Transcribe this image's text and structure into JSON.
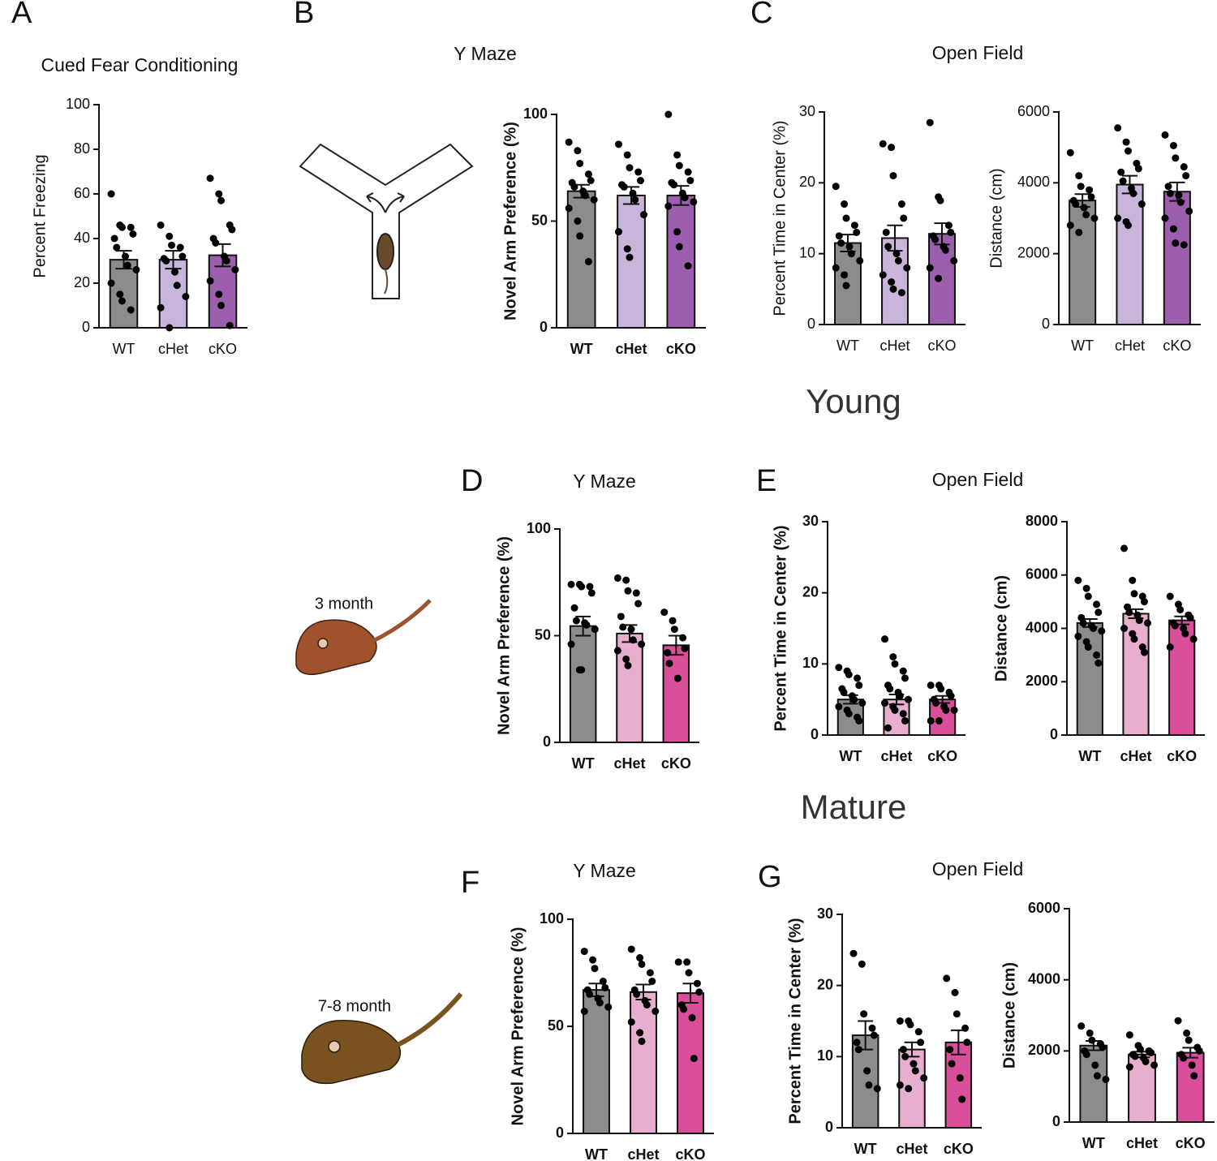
{
  "labels": {
    "young": "Young",
    "mature": "Mature",
    "age_3": "3 month",
    "age_7": "7-8 month"
  },
  "chart_data": [
    {
      "type": "bar",
      "panel": "A",
      "title": "Cued Fear Conditioning",
      "ylabel": "Percent Freezing",
      "font_weight": "normal",
      "categories": [
        "WT",
        "cHet",
        "cKO"
      ],
      "colors": [
        "#8c8c8a",
        "#c9b5d9",
        "#9b5fae"
      ],
      "values": [
        30.5,
        30.5,
        32.5
      ],
      "errors": [
        4,
        4,
        5
      ],
      "points": [
        [
          60,
          46,
          45,
          45,
          42,
          40,
          36,
          32,
          28,
          26,
          20,
          15,
          12,
          8
        ],
        [
          46,
          41,
          37,
          36,
          32,
          31,
          30,
          25,
          19,
          14,
          9,
          0
        ],
        [
          67,
          60,
          57,
          46,
          44,
          40,
          38,
          32,
          30,
          26,
          21,
          15,
          10,
          1
        ]
      ],
      "ylim": [
        0,
        100
      ],
      "yticks": [
        0,
        20,
        40,
        60,
        80,
        100
      ]
    },
    {
      "type": "bar",
      "panel": "B",
      "title": "Y Maze",
      "ylabel": "Novel Arm Preference (%)",
      "font_weight": "bold",
      "categories": [
        "WT",
        "cHet",
        "cKO"
      ],
      "colors": [
        "#8c8c8a",
        "#c9b5d9",
        "#9b5fae"
      ],
      "values": [
        64,
        62,
        62
      ],
      "errors": [
        3,
        4,
        4.5
      ],
      "points": [
        [
          87,
          83,
          77,
          72,
          69,
          68,
          66,
          64,
          62,
          60,
          56,
          50,
          43,
          31
        ],
        [
          86,
          81,
          75,
          73,
          69,
          67,
          66,
          63,
          60,
          53,
          45,
          37,
          33
        ],
        [
          100,
          81,
          76,
          73,
          69,
          68,
          67,
          63,
          61,
          59,
          57,
          45,
          38,
          29
        ]
      ],
      "ylim": [
        0,
        100
      ],
      "yticks": [
        0,
        50,
        100
      ]
    },
    {
      "type": "bar",
      "panel": "C",
      "title": "Open Field",
      "ylabel": "Percent Time in Center (%)",
      "font_weight": "normal",
      "categories": [
        "WT",
        "cHet",
        "cKO"
      ],
      "colors": [
        "#8c8c8a",
        "#c9b5d9",
        "#9b5fae"
      ],
      "values": [
        11.5,
        12.2,
        12.8
      ],
      "errors": [
        1.2,
        1.8,
        1.5
      ],
      "points": [
        [
          19.5,
          17,
          15,
          14,
          13,
          12.5,
          11.5,
          11,
          10,
          9,
          8,
          7,
          5.5
        ],
        [
          25.5,
          25,
          21,
          17,
          15,
          13,
          11,
          10,
          9,
          8,
          7,
          6,
          5,
          4.5
        ],
        [
          28.5,
          18,
          17.5,
          14,
          13,
          12.5,
          12,
          11,
          10.5,
          9,
          8,
          6.5
        ]
      ],
      "ylim": [
        0,
        30
      ],
      "yticks": [
        0,
        10,
        20,
        30
      ]
    },
    {
      "type": "bar",
      "ylabel": "Distance (cm)",
      "font_weight": "normal",
      "categories": [
        "WT",
        "cHet",
        "cKO"
      ],
      "colors": [
        "#8c8c8a",
        "#c9b5d9",
        "#9b5fae"
      ],
      "values": [
        3500,
        3950,
        3750
      ],
      "errors": [
        180,
        250,
        260
      ],
      "points": [
        [
          4850,
          4200,
          3900,
          3800,
          3600,
          3500,
          3400,
          3300,
          3100,
          3000,
          2800,
          2600
        ],
        [
          5550,
          5150,
          4900,
          4550,
          4400,
          4300,
          4050,
          3850,
          3700,
          3400,
          3000,
          2900,
          2800
        ],
        [
          5350,
          5050,
          4700,
          4450,
          4200,
          3900,
          3700,
          3650,
          3450,
          3200,
          3000,
          2700,
          2300,
          2250
        ]
      ],
      "ylim": [
        0,
        6000
      ],
      "yticks": [
        0,
        2000,
        4000,
        6000
      ]
    },
    {
      "type": "bar",
      "panel": "D",
      "title": "Y Maze",
      "ylabel": "Novel Arm Preference (%)",
      "font_weight": "bold",
      "categories": [
        "WT",
        "cHet",
        "cKO"
      ],
      "colors": [
        "#8c8c8a",
        "#e8aed0",
        "#d94f9a"
      ],
      "values": [
        54.5,
        51,
        45.5
      ],
      "errors": [
        4.5,
        4,
        4.5
      ],
      "points": [
        [
          74,
          74,
          73,
          73,
          70,
          63,
          57,
          56,
          55,
          53,
          46,
          34,
          34
        ],
        [
          77,
          76,
          71,
          70,
          65,
          59,
          54,
          53,
          48,
          46,
          43,
          39,
          36
        ],
        [
          61,
          57,
          53,
          49,
          44,
          42,
          37,
          30
        ]
      ],
      "ylim": [
        0,
        100
      ],
      "yticks": [
        0,
        50,
        100
      ]
    },
    {
      "type": "bar",
      "panel": "E",
      "title": "Open Field",
      "ylabel": "Percent Time in Center (%)",
      "font_weight": "bold",
      "categories": [
        "WT",
        "cHet",
        "cKO"
      ],
      "colors": [
        "#8c8c8a",
        "#e8aed0",
        "#d94f9a"
      ],
      "values": [
        5,
        5,
        5
      ],
      "errors": [
        0.6,
        0.7,
        0.5
      ],
      "points": [
        [
          9.5,
          9,
          8.5,
          8,
          7,
          6.5,
          6,
          5.5,
          5,
          4.5,
          4,
          3.5,
          3,
          2.5,
          2
        ],
        [
          13.5,
          11,
          10,
          9,
          8,
          7,
          6.5,
          6,
          5.5,
          5,
          4.5,
          4,
          3.5,
          3,
          2,
          1
        ],
        [
          7,
          7,
          6.5,
          6,
          5.5,
          5,
          4.5,
          4,
          3.5,
          3.5,
          2,
          2
        ]
      ],
      "ylim": [
        0,
        30
      ],
      "yticks": [
        0,
        10,
        20,
        30
      ]
    },
    {
      "type": "bar",
      "ylabel": "Distance (cm)",
      "font_weight": "bold",
      "categories": [
        "WT",
        "cHet",
        "cKO"
      ],
      "colors": [
        "#8c8c8a",
        "#e8aed0",
        "#d94f9a"
      ],
      "values": [
        4200,
        4550,
        4300
      ],
      "errors": [
        150,
        170,
        150
      ],
      "points": [
        [
          5800,
          5500,
          5200,
          4900,
          4600,
          4400,
          4200,
          4100,
          4000,
          3900,
          3700,
          3500,
          3300,
          3000,
          2700
        ],
        [
          7000,
          5800,
          5300,
          5200,
          5000,
          4800,
          4600,
          4500,
          4300,
          4200,
          4000,
          3800,
          3600,
          3300,
          3100
        ],
        [
          5200,
          4900,
          4700,
          4500,
          4400,
          4200,
          4100,
          4000,
          3800,
          3600,
          3300
        ]
      ],
      "ylim": [
        0,
        8000
      ],
      "yticks": [
        0,
        2000,
        4000,
        6000,
        8000
      ]
    },
    {
      "type": "bar",
      "panel": "F",
      "title": "Y Maze",
      "ylabel": "Novel Arm Preference (%)",
      "font_weight": "bold",
      "categories": [
        "WT",
        "cHet",
        "cKO"
      ],
      "colors": [
        "#8c8c8a",
        "#e8aed0",
        "#d94f9a"
      ],
      "values": [
        67,
        66,
        65.5
      ],
      "errors": [
        3,
        3.5,
        4.5
      ],
      "points": [
        [
          85,
          81,
          77,
          71,
          68,
          67,
          65,
          63,
          61,
          59,
          57
        ],
        [
          86,
          82,
          79,
          75,
          71,
          67,
          65,
          62,
          60,
          57,
          52,
          47,
          43
        ],
        [
          80,
          80,
          75,
          70,
          66,
          60,
          58,
          54,
          35
        ]
      ],
      "ylim": [
        0,
        100
      ],
      "yticks": [
        0,
        50,
        100
      ]
    },
    {
      "type": "bar",
      "panel": "G",
      "title": "Open Field",
      "ylabel": "Percent Time in Center (%)",
      "font_weight": "bold",
      "categories": [
        "WT",
        "cHet",
        "cKO"
      ],
      "colors": [
        "#8c8c8a",
        "#e8aed0",
        "#d94f9a"
      ],
      "values": [
        13,
        11,
        12
      ],
      "errors": [
        2,
        1,
        1.7
      ],
      "points": [
        [
          24.5,
          23,
          16,
          14,
          13,
          12,
          11,
          8,
          6,
          5.5
        ],
        [
          15,
          15,
          14.5,
          13.5,
          12,
          11,
          10,
          9,
          8,
          7,
          6,
          5.5
        ],
        [
          21,
          19,
          16,
          14,
          12,
          11,
          9,
          7,
          4
        ]
      ],
      "ylim": [
        0,
        30
      ],
      "yticks": [
        0,
        10,
        20,
        30
      ]
    },
    {
      "type": "bar",
      "ylabel": "Distance (cm)",
      "font_weight": "bold",
      "categories": [
        "WT",
        "cHet",
        "cKO"
      ],
      "colors": [
        "#8c8c8a",
        "#e8aed0",
        "#d94f9a"
      ],
      "values": [
        2150,
        1900,
        1950
      ],
      "errors": [
        130,
        80,
        140
      ],
      "points": [
        [
          2700,
          2500,
          2300,
          2200,
          2100,
          2000,
          1900,
          1600,
          1300,
          1200
        ],
        [
          2450,
          2150,
          2050,
          2000,
          1950,
          1900,
          1850,
          1800,
          1700,
          1600,
          1550
        ],
        [
          2850,
          2500,
          2300,
          2100,
          2000,
          1900,
          1800,
          1600,
          1300
        ]
      ],
      "ylim": [
        0,
        6000
      ],
      "yticks": [
        0,
        2000,
        4000,
        6000
      ]
    }
  ]
}
